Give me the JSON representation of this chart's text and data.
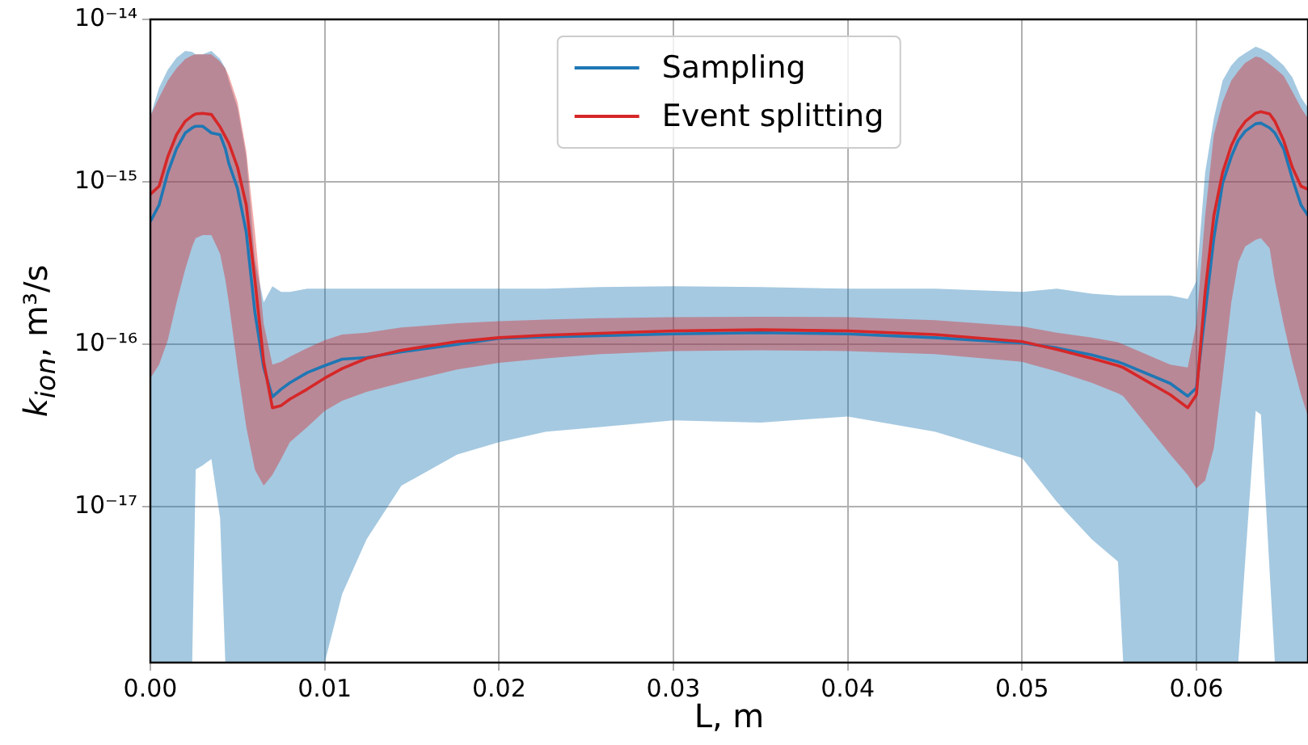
{
  "chart_data": {
    "type": "line",
    "xlabel": "L, m",
    "ylabel": "k$_{ion}$, m³/s",
    "log": "y",
    "grid": true,
    "legend": "top",
    "marker": "none",
    "line_style": "solid",
    "xlim": [
      0,
      0.0664
    ],
    "ylim": [
      1.1e-18,
      1e-14
    ],
    "xticks": [
      {
        "value": 0,
        "label": "0.00"
      },
      {
        "value": 0.01,
        "label": "0.01"
      },
      {
        "value": 0.02,
        "label": "0.02"
      },
      {
        "value": 0.03,
        "label": "0.03"
      },
      {
        "value": 0.04,
        "label": "0.04"
      },
      {
        "value": 0.05,
        "label": "0.05"
      },
      {
        "value": 0.06,
        "label": "0.06"
      }
    ],
    "yticks": [
      {
        "value": 1e-17,
        "label": "10⁻¹⁷"
      },
      {
        "value": 1e-16,
        "label": "10⁻¹⁶"
      },
      {
        "value": 1e-15,
        "label": "10⁻¹⁵"
      },
      {
        "value": 1e-14,
        "label": "10⁻¹⁴"
      }
    ],
    "x": [
      0,
      0.0005,
      0.001,
      0.0015,
      0.002,
      0.0024,
      0.0026,
      0.003,
      0.0035,
      0.004,
      0.0043,
      0.0045,
      0.005,
      0.0055,
      0.006,
      0.0065,
      0.007,
      0.0075,
      0.008,
      0.009,
      0.01,
      0.011,
      0.0124,
      0.0144,
      0.0176,
      0.02,
      0.0227,
      0.0258,
      0.03,
      0.035,
      0.04,
      0.045,
      0.05,
      0.052,
      0.054,
      0.0555,
      0.0558,
      0.0585,
      0.0595,
      0.06,
      0.0605,
      0.061,
      0.0615,
      0.062,
      0.0624,
      0.0628,
      0.0634,
      0.0637,
      0.0642,
      0.0645,
      0.065,
      0.0655,
      0.066,
      0.0664
    ],
    "series": [
      {
        "name": "Sampling",
        "color": "#1f77b4",
        "values": [
          5.7e-16,
          7.2e-16,
          1.14e-15,
          1.6e-15,
          2e-15,
          2.15e-15,
          2.2e-15,
          2.2e-15,
          2e-15,
          1.95e-15,
          1.6e-15,
          1.3e-15,
          9.1e-16,
          4.9e-16,
          1.56e-16,
          7.2e-17,
          4.75e-17,
          5.3e-17,
          5.8e-17,
          6.7e-17,
          7.4e-17,
          8.1e-17,
          8.3e-17,
          9e-17,
          1e-16,
          1.09e-16,
          1.11e-16,
          1.13e-16,
          1.16e-16,
          1.18e-16,
          1.16e-16,
          1.1e-16,
          1.02e-16,
          9.5e-17,
          8.6e-17,
          7.8e-17,
          7.6e-17,
          5.75e-17,
          4.8e-17,
          5.4e-17,
          1.55e-16,
          4.5e-16,
          9.8e-16,
          1.43e-15,
          1.8e-15,
          2.05e-15,
          2.28e-15,
          2.3e-15,
          2.15e-15,
          2e-15,
          1.6e-15,
          1.05e-15,
          7.2e-16,
          6.2e-16
        ],
        "upper": [
          2.54e-15,
          3.8e-15,
          4.9e-15,
          5.8e-15,
          6.4e-15,
          6.3e-15,
          6.1e-15,
          6.1e-15,
          6.4e-15,
          5.7e-15,
          5e-15,
          4.2e-15,
          2.85e-15,
          1.43e-15,
          3.3e-16,
          1.81e-16,
          2.28e-16,
          2.1e-16,
          2.1e-16,
          2.2e-16,
          2.2e-16,
          2.2e-16,
          2.2e-16,
          2.2e-16,
          2.2e-16,
          2.2e-16,
          2.2e-16,
          2.25e-16,
          2.28e-16,
          2.25e-16,
          2.2e-16,
          2.2e-16,
          2.1e-16,
          2.2e-16,
          2.05e-16,
          2e-16,
          2e-16,
          2e-16,
          1.9e-16,
          2.45e-16,
          1.14e-15,
          2.45e-15,
          4.2e-15,
          5.2e-15,
          5.8e-15,
          6.2e-15,
          6.8e-15,
          6.6e-15,
          6.2e-15,
          5.8e-15,
          5.2e-15,
          4.4e-15,
          3.3e-15,
          2.85e-15
        ],
        "lower": [
          1.1e-18,
          1.1e-18,
          1.1e-18,
          1.1e-18,
          1.1e-18,
          1.1e-18,
          1.7e-17,
          1.8e-17,
          1.97e-17,
          8.5e-18,
          1.1e-18,
          1.1e-18,
          1.1e-18,
          1.1e-18,
          1.1e-18,
          1.1e-18,
          1.1e-18,
          1.1e-18,
          1.1e-18,
          1.1e-18,
          1.1e-18,
          2.9e-18,
          6.3e-18,
          1.35e-17,
          2.1e-17,
          2.5e-17,
          2.9e-17,
          3.1e-17,
          3.4e-17,
          3.3e-17,
          3.6e-17,
          2.9e-17,
          2e-17,
          1.07e-17,
          6.3e-18,
          4.6e-18,
          1.1e-18,
          1.1e-18,
          1.1e-18,
          1.1e-18,
          1.1e-18,
          1.1e-18,
          1.1e-18,
          1.1e-18,
          1.1e-18,
          4.7e-18,
          3.9e-17,
          3.7e-17,
          4e-18,
          1.1e-18,
          1.1e-18,
          1.1e-18,
          1.1e-18,
          1.1e-18
        ]
      },
      {
        "name": "Event splitting",
        "color": "#d62728",
        "values": [
          8.4e-16,
          9.4e-16,
          1.43e-15,
          1.95e-15,
          2.36e-15,
          2.55e-15,
          2.62e-15,
          2.64e-15,
          2.6e-15,
          2.18e-15,
          1.9e-15,
          1.73e-15,
          1.23e-15,
          7.2e-16,
          2.47e-16,
          7.8e-17,
          4.07e-17,
          4.2e-17,
          4.6e-17,
          5.3e-17,
          6.2e-17,
          7.1e-17,
          8.2e-17,
          9.2e-17,
          1.04e-16,
          1.1e-16,
          1.14e-16,
          1.17e-16,
          1.21e-16,
          1.23e-16,
          1.21e-16,
          1.15e-16,
          1.04e-16,
          9.3e-17,
          8.2e-17,
          7.4e-17,
          7.2e-17,
          4.9e-17,
          4.07e-17,
          4.9e-17,
          2.1e-16,
          6.2e-16,
          1.14e-15,
          1.67e-15,
          2.05e-15,
          2.35e-15,
          2.65e-15,
          2.7e-15,
          2.62e-15,
          2.36e-15,
          1.8e-15,
          1.23e-15,
          9.4e-16,
          9e-16
        ],
        "upper": [
          2.54e-15,
          3.3e-15,
          4.2e-15,
          5e-15,
          5.7e-15,
          6e-15,
          6.1e-15,
          6.1e-15,
          6.1e-15,
          5.5e-15,
          5e-15,
          4.5e-15,
          3.1e-15,
          1.55e-15,
          4.9e-16,
          1.34e-16,
          7.5e-17,
          7.8e-17,
          8.4e-17,
          9.5e-17,
          1.06e-16,
          1.15e-16,
          1.18e-16,
          1.27e-16,
          1.35e-16,
          1.39e-16,
          1.42e-16,
          1.45e-16,
          1.47e-16,
          1.48e-16,
          1.47e-16,
          1.41e-16,
          1.29e-16,
          1.18e-16,
          1.1e-16,
          1.03e-16,
          1e-16,
          7.5e-17,
          7.2e-17,
          1.34e-16,
          6.2e-16,
          1.95e-15,
          3.1e-15,
          4.2e-15,
          4.8e-15,
          5.4e-15,
          5.9e-15,
          5.8e-15,
          5.3e-15,
          5e-15,
          4.5e-15,
          3.6e-15,
          2.85e-15,
          2.45e-15
        ],
        "lower": [
          6.2e-17,
          7.5e-17,
          1.06e-16,
          1.8e-16,
          2.9e-16,
          4e-16,
          4.5e-16,
          4.7e-16,
          4.7e-16,
          3.6e-16,
          2.5e-16,
          1.81e-16,
          7.2e-17,
          3.1e-17,
          1.69e-17,
          1.35e-17,
          1.57e-17,
          1.97e-17,
          2.5e-17,
          3.1e-17,
          3.9e-17,
          4.5e-17,
          5.1e-17,
          5.8e-17,
          7e-17,
          7.7e-17,
          8.2e-17,
          8.7e-17,
          9.1e-17,
          9.2e-17,
          9.1e-17,
          8.7e-17,
          7.8e-17,
          6.8e-17,
          5.8e-17,
          5e-17,
          4.8e-17,
          2.1e-17,
          1.57e-17,
          1.3e-17,
          1.45e-17,
          2.3e-17,
          6.2e-17,
          1.81e-16,
          3.2e-16,
          4e-16,
          4.4e-16,
          4.5e-16,
          3.9e-16,
          2.45e-16,
          1.34e-16,
          7.8e-17,
          4.9e-17,
          3.6e-17
        ]
      }
    ]
  }
}
